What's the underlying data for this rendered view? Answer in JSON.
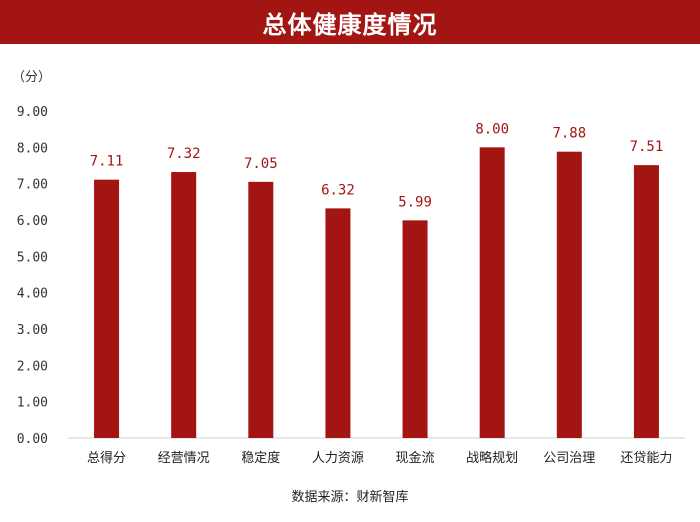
{
  "header": {
    "title": "总体健康度情况"
  },
  "unit": "（分）",
  "source": "数据来源：财新智库",
  "colors": {
    "bar": "#a31512",
    "title_bg": "#a31512",
    "axis": "#d0d0d0"
  },
  "chart_data": {
    "type": "bar",
    "title": "总体健康度情况",
    "ylabel": "（分）",
    "xlabel": "",
    "ylim": [
      0,
      9
    ],
    "yticks": [
      "0.00",
      "1.00",
      "2.00",
      "3.00",
      "4.00",
      "5.00",
      "6.00",
      "7.00",
      "8.00",
      "9.00"
    ],
    "grid": false,
    "categories": [
      "总得分",
      "经营情况",
      "稳定度",
      "人力资源",
      "现金流",
      "战略规划",
      "公司治理",
      "还贷能力"
    ],
    "values": [
      7.11,
      7.32,
      7.05,
      6.32,
      5.99,
      8.0,
      7.88,
      7.51
    ],
    "data_labels": [
      "7.11",
      "7.32",
      "7.05",
      "6.32",
      "5.99",
      "8.00",
      "7.88",
      "7.51"
    ]
  }
}
